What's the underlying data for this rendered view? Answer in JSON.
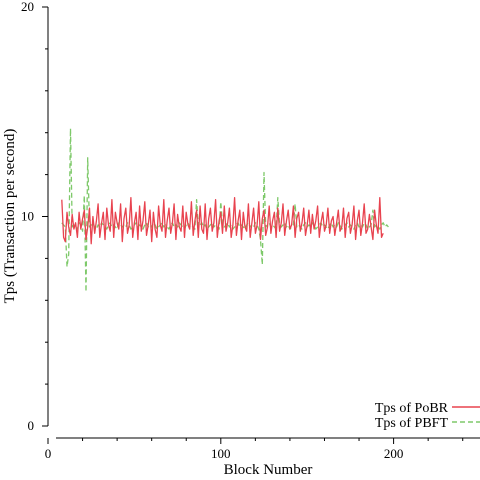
{
  "chart_data": {
    "type": "line",
    "xlabel": "Block Number",
    "ylabel": "Tps (Transaction per second)",
    "xlim": [
      0,
      250
    ],
    "ylim": [
      0,
      20
    ],
    "x_ticks": [
      0,
      100,
      200
    ],
    "x_minor_ticks": [
      20,
      40,
      60,
      80,
      120,
      140,
      160,
      180,
      220,
      240
    ],
    "y_ticks": [
      0,
      10,
      20
    ],
    "y_minor_ticks": [
      2,
      4,
      6,
      8,
      12,
      14,
      16,
      18
    ],
    "legend_position": "bottom-right",
    "series": [
      {
        "name": "Tps of PoBR",
        "color": "#e8434f",
        "dash": "solid",
        "x_start": 8,
        "x_step": 1,
        "values": [
          10.8,
          9.0,
          8.8,
          10.2,
          9.5,
          9.1,
          10.1,
          9.4,
          9.7,
          9.0,
          10.2,
          9.4,
          9.9,
          10.3,
          8.9,
          9.5,
          10.4,
          8.7,
          10.0,
          9.2,
          9.8,
          10.6,
          9.0,
          9.7,
          10.2,
          8.9,
          10.4,
          9.6,
          9.3,
          10.8,
          9.0,
          10.2,
          9.7,
          9.4,
          10.6,
          8.8,
          9.9,
          10.4,
          9.2,
          9.6,
          10.9,
          9.0,
          9.7,
          10.2,
          8.9,
          10.5,
          9.3,
          9.8,
          10.7,
          9.1,
          9.6,
          10.3,
          8.8,
          10.2,
          9.4,
          9.0,
          10.5,
          9.6,
          9.3,
          10.8,
          9.0,
          9.8,
          10.4,
          9.2,
          9.7,
          10.6,
          8.9,
          10.1,
          9.5,
          9.3,
          10.5,
          9.0,
          10.2,
          9.6,
          9.4,
          10.7,
          9.1,
          9.8,
          10.3,
          9.0,
          10.5,
          9.4,
          9.2,
          10.6,
          8.9,
          9.9,
          10.4,
          9.3,
          9.7,
          10.8,
          9.0,
          9.8,
          10.2,
          9.2,
          10.5,
          9.3,
          9.7,
          10.4,
          9.0,
          9.6,
          10.9,
          9.1,
          9.8,
          10.3,
          8.9,
          10.2,
          9.5,
          9.3,
          10.6,
          9.0,
          9.7,
          10.4,
          9.2,
          9.6,
          10.7,
          8.9,
          9.9,
          10.3,
          9.1,
          9.5,
          10.5,
          9.2,
          9.8,
          10.2,
          9.0,
          10.4,
          9.3,
          9.7,
          10.6,
          9.1,
          9.8,
          10.3,
          9.4,
          9.6,
          10.5,
          9.0,
          9.9,
          10.2,
          9.3,
          9.7,
          10.4,
          9.1,
          9.6,
          10.3,
          9.2,
          10.1,
          9.4,
          9.8,
          10.5,
          9.0,
          9.7,
          10.2,
          9.3,
          9.6,
          10.4,
          9.2,
          9.8,
          10.0,
          9.1,
          9.7,
          10.3,
          9.3,
          9.5,
          10.4,
          9.0,
          9.9,
          10.2,
          9.2,
          9.6,
          10.5,
          8.9,
          9.8,
          10.3,
          9.1,
          9.7,
          10.6,
          9.2,
          9.4,
          10.1,
          9.5,
          8.9,
          10.3,
          9.6,
          9.2,
          10.9,
          9.0,
          9.2
        ]
      },
      {
        "name": "Tps of PBFT",
        "color": "#7ec96a",
        "dash": "dashed",
        "x_start": 8,
        "x_step": 1,
        "values": [
          9.7,
          9.6,
          9.5,
          7.6,
          8.2,
          14.2,
          9.5,
          9.6,
          9.5,
          9.4,
          9.7,
          9.6,
          9.3,
          11.0,
          6.4,
          12.8,
          9.5,
          9.6,
          9.7,
          9.5,
          9.4,
          9.6,
          9.5,
          9.7,
          9.6,
          9.5,
          9.4,
          9.6,
          9.7,
          9.5,
          9.6,
          9.5,
          9.4,
          9.7,
          9.6,
          9.5,
          9.6,
          9.5,
          9.7,
          9.6,
          9.4,
          9.5,
          9.6,
          9.7,
          9.5,
          9.6,
          9.5,
          9.4,
          9.6,
          9.7,
          9.5,
          9.6,
          9.5,
          9.7,
          9.6,
          9.4,
          9.5,
          9.6,
          9.7,
          9.5,
          9.6,
          9.5,
          9.4,
          9.6,
          9.7,
          9.5,
          9.6,
          9.5,
          9.7,
          9.6,
          9.5,
          9.4,
          9.6,
          9.7,
          9.5,
          9.6,
          9.5,
          9.4,
          10.8,
          9.5,
          9.6,
          9.7,
          9.5,
          9.6,
          9.4,
          9.5,
          9.6,
          9.7,
          9.5,
          9.6,
          9.5,
          9.4,
          10.7,
          9.6,
          9.5,
          9.6,
          9.7,
          9.5,
          9.6,
          9.4,
          9.5,
          9.6,
          9.7,
          9.5,
          9.6,
          9.5,
          9.4,
          9.6,
          9.7,
          9.5,
          9.6,
          9.5,
          9.7,
          9.6,
          9.4,
          8.9,
          7.7,
          12.1,
          9.5,
          9.6,
          9.7,
          9.5,
          9.6,
          9.5,
          9.4,
          10.9,
          9.6,
          9.5,
          9.6,
          9.7,
          9.5,
          9.6,
          9.4,
          9.5,
          9.6,
          10.6,
          9.5,
          9.6,
          9.5,
          9.4,
          9.6,
          9.7,
          9.5,
          9.6,
          9.5,
          9.7,
          9.6,
          9.4,
          9.5,
          9.6,
          9.7,
          9.5,
          9.6,
          9.5,
          9.4,
          9.6,
          9.7,
          9.5,
          9.6,
          9.5,
          9.7,
          9.6,
          9.4,
          9.5,
          9.6,
          9.7,
          9.5,
          9.6,
          9.5,
          9.4,
          9.6,
          9.7,
          9.5,
          9.6,
          9.5,
          9.7,
          9.6,
          9.4,
          9.5,
          9.6,
          10.3,
          9.5,
          9.6,
          9.5,
          9.4,
          9.6,
          9.7,
          9.5,
          9.6,
          9.5
        ]
      }
    ]
  }
}
